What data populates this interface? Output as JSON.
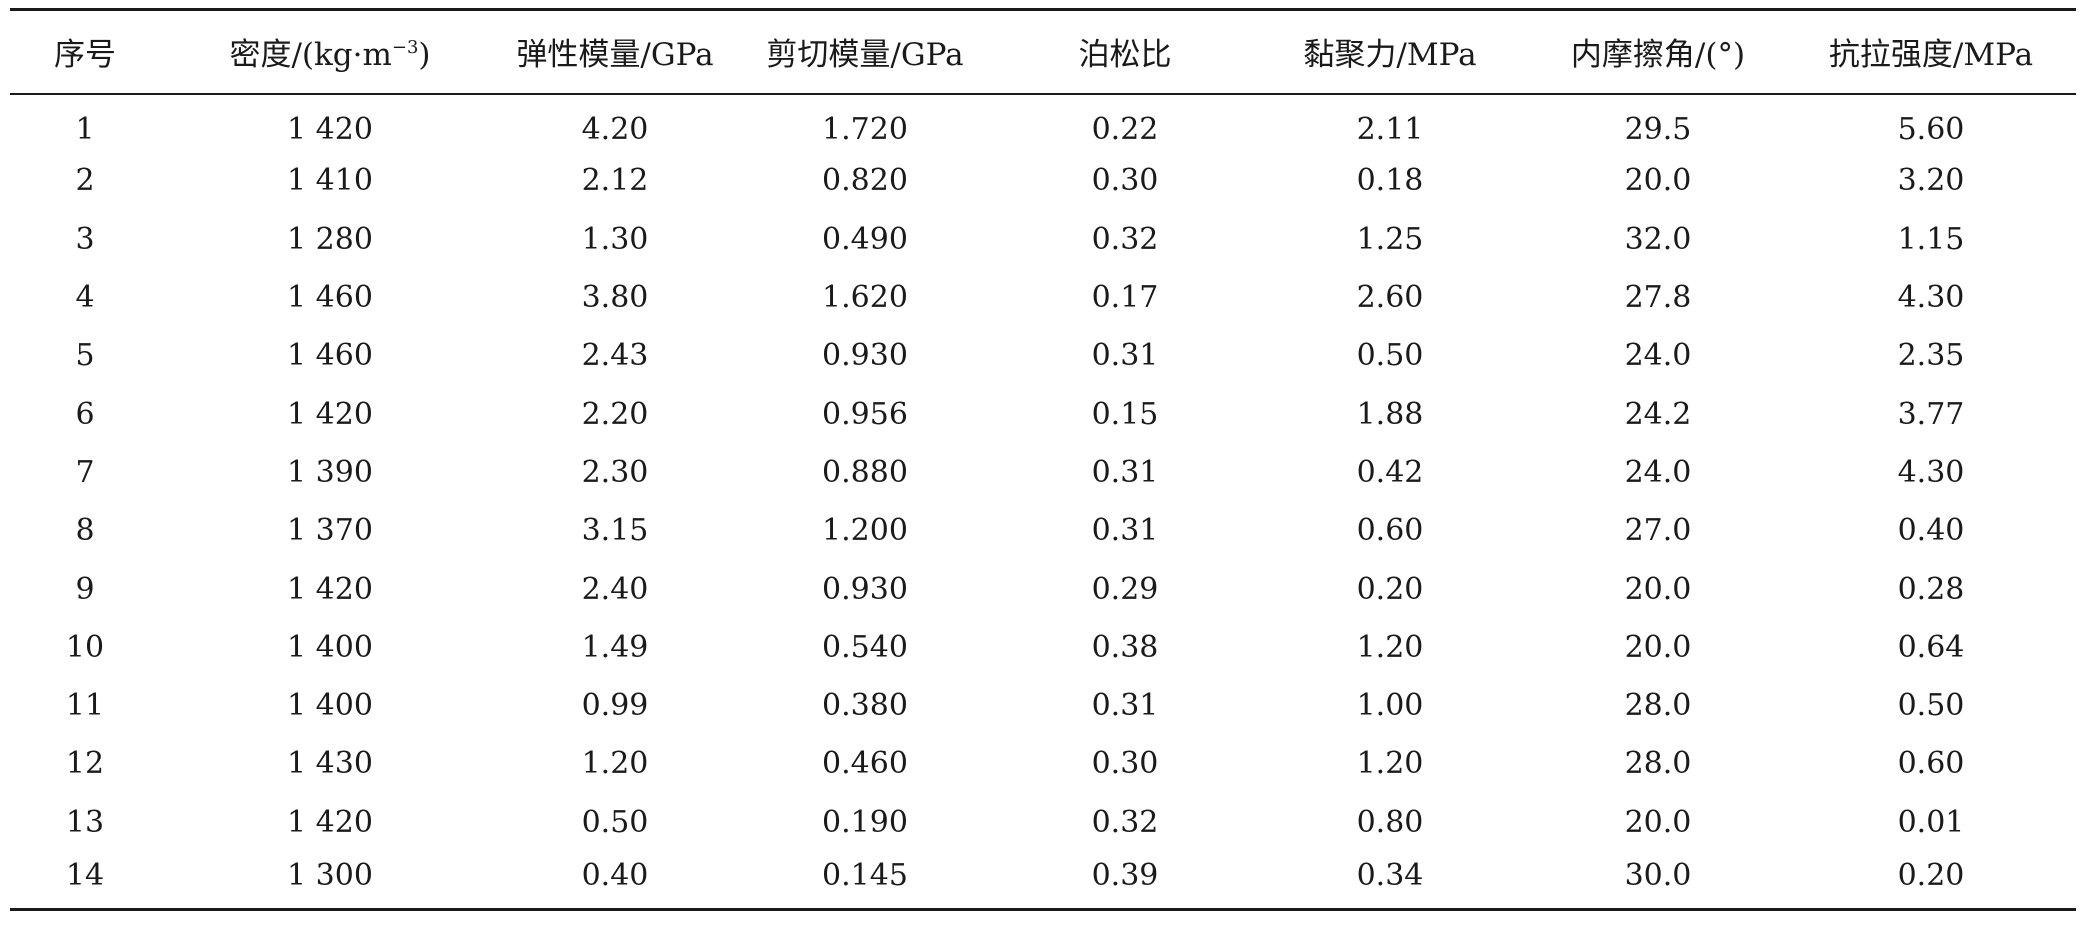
{
  "table": {
    "headers": [
      {
        "text": "序号"
      },
      {
        "text": "密度/(kg·m",
        "sup": "−3",
        "tail": ")"
      },
      {
        "text": "弹性模量/GPa"
      },
      {
        "text": "剪切模量/GPa"
      },
      {
        "text": "泊松比"
      },
      {
        "text": "黏聚力/MPa"
      },
      {
        "text": "内摩擦角/(°)"
      },
      {
        "text": "抗拉强度/MPa"
      }
    ],
    "rows": [
      [
        "1",
        "1 420",
        "4.20",
        "1.720",
        "0.22",
        "2.11",
        "29.5",
        "5.60"
      ],
      [
        "2",
        "1 410",
        "2.12",
        "0.820",
        "0.30",
        "0.18",
        "20.0",
        "3.20"
      ],
      [
        "3",
        "1 280",
        "1.30",
        "0.490",
        "0.32",
        "1.25",
        "32.0",
        "1.15"
      ],
      [
        "4",
        "1 460",
        "3.80",
        "1.620",
        "0.17",
        "2.60",
        "27.8",
        "4.30"
      ],
      [
        "5",
        "1 460",
        "2.43",
        "0.930",
        "0.31",
        "0.50",
        "24.0",
        "2.35"
      ],
      [
        "6",
        "1 420",
        "2.20",
        "0.956",
        "0.15",
        "1.88",
        "24.2",
        "3.77"
      ],
      [
        "7",
        "1 390",
        "2.30",
        "0.880",
        "0.31",
        "0.42",
        "24.0",
        "4.30"
      ],
      [
        "8",
        "1 370",
        "3.15",
        "1.200",
        "0.31",
        "0.60",
        "27.0",
        "0.40"
      ],
      [
        "9",
        "1 420",
        "2.40",
        "0.930",
        "0.29",
        "0.20",
        "20.0",
        "0.28"
      ],
      [
        "10",
        "1 400",
        "1.49",
        "0.540",
        "0.38",
        "1.20",
        "20.0",
        "0.64"
      ],
      [
        "11",
        "1 400",
        "0.99",
        "0.380",
        "0.31",
        "1.00",
        "28.0",
        "0.50"
      ],
      [
        "12",
        "1 430",
        "1.20",
        "0.460",
        "0.30",
        "1.20",
        "28.0",
        "0.60"
      ],
      [
        "13",
        "1 420",
        "0.50",
        "0.190",
        "0.32",
        "0.80",
        "20.0",
        "0.01"
      ],
      [
        "14",
        "1 300",
        "0.40",
        "0.145",
        "0.39",
        "0.34",
        "30.0",
        "0.20"
      ]
    ]
  }
}
